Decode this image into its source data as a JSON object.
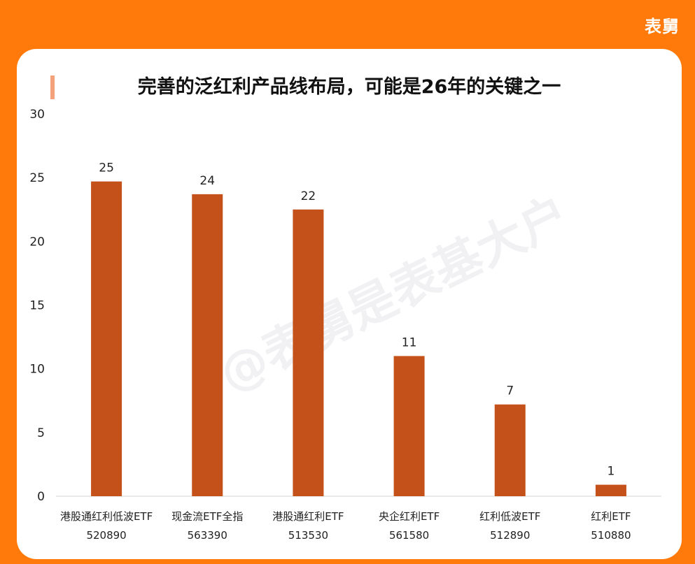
{
  "brand": "表舅",
  "watermark": "@表舅是表基大户",
  "colors": {
    "background": "#ff7a0a",
    "bar": "#c4501a"
  },
  "chart_data": {
    "type": "bar",
    "title": "完善的泛红利产品线布局，可能是26年的关键之一",
    "xlabel": "",
    "ylabel": "",
    "ylim": [
      0,
      30
    ],
    "yticks": [
      0,
      5,
      10,
      15,
      20,
      25,
      30
    ],
    "grid": false,
    "categories": [
      {
        "name": "港股通红利低波ETF",
        "code": "520890"
      },
      {
        "name": "现金流ETF全指",
        "code": "563390"
      },
      {
        "name": "港股通红利ETF",
        "code": "513530"
      },
      {
        "name": "央企红利ETF",
        "code": "561580"
      },
      {
        "name": "红利低波ETF",
        "code": "512890"
      },
      {
        "name": "红利ETF",
        "code": "510880"
      }
    ],
    "values": [
      24.7,
      23.7,
      22.5,
      11,
      7.2,
      0.9
    ],
    "data_labels": [
      "25",
      "24",
      "22",
      "11",
      "7",
      "1"
    ]
  }
}
